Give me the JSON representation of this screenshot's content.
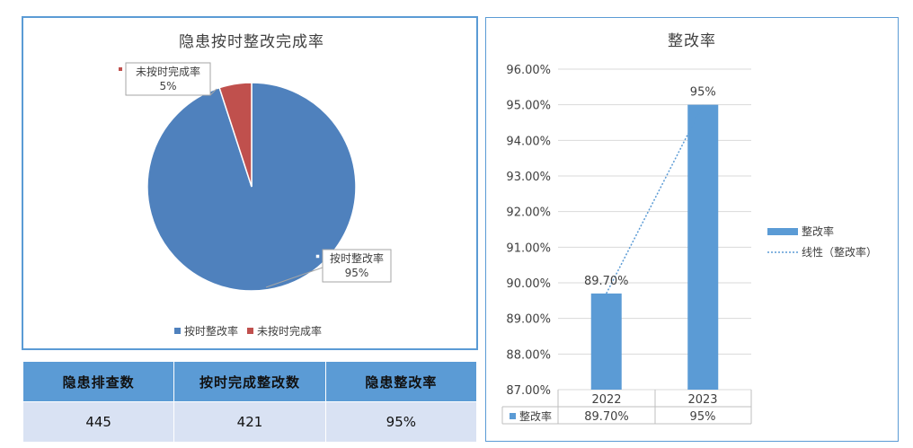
{
  "summary_table": {
    "headers": [
      "隐患排查数",
      "按时完成整改数",
      "隐患整改率"
    ],
    "rows": [
      [
        "445",
        "421",
        "95%"
      ]
    ]
  },
  "chart_data": [
    {
      "type": "pie",
      "title": "隐患按时整改完成率",
      "slices": [
        {
          "label": "按时整改率",
          "value": 95,
          "display": "95%",
          "color": "#4f81bd"
        },
        {
          "label": "未按时完成率",
          "value": 5,
          "display": "5%",
          "color": "#c0504d"
        }
      ],
      "legend_position": "bottom"
    },
    {
      "type": "bar",
      "title": "整改率",
      "categories": [
        "2022",
        "2023"
      ],
      "series": [
        {
          "name": "整改率",
          "values": [
            89.7,
            95
          ],
          "labels": [
            "89.70%",
            "95%"
          ],
          "color": "#5b9bd5"
        }
      ],
      "trendline": {
        "name": "线性（整改率）",
        "style": "dotted",
        "color": "#5b9bd5"
      },
      "y_ticks": [
        "87.00%",
        "88.00%",
        "89.00%",
        "90.00%",
        "91.00%",
        "92.00%",
        "93.00%",
        "94.00%",
        "95.00%",
        "96.00%"
      ],
      "ylim": [
        87,
        96
      ],
      "data_table": true,
      "grid": true,
      "legend_position": "right"
    }
  ]
}
